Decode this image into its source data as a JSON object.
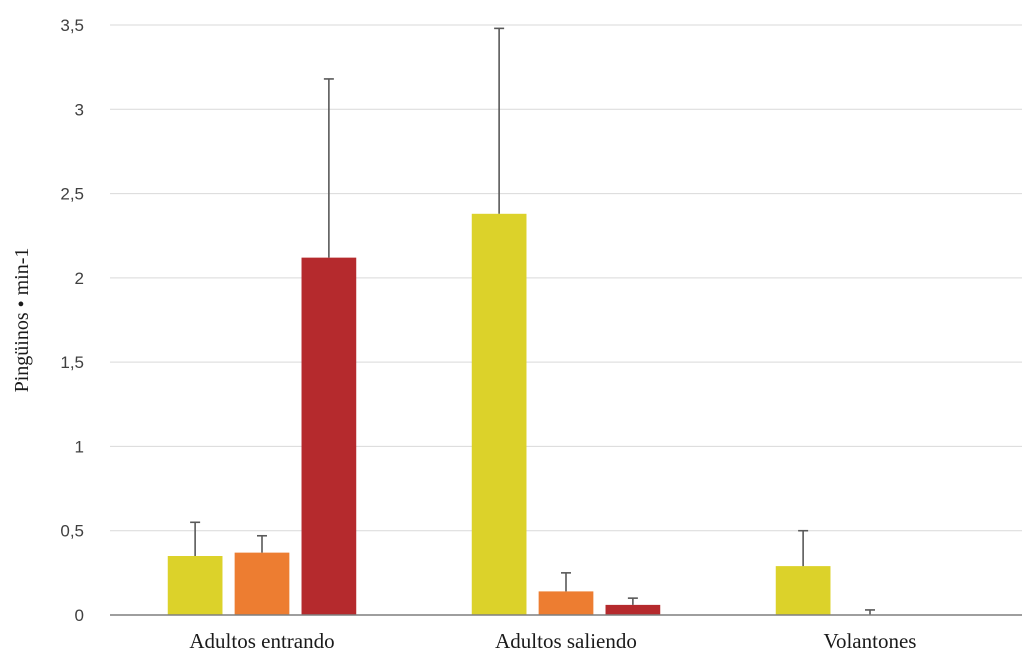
{
  "chart_data": {
    "type": "bar",
    "title": "",
    "xlabel": "",
    "ylabel": "Pingüinos • min-1",
    "ylim": [
      0,
      3.5
    ],
    "y_ticks": [
      "0",
      "0,5",
      "1",
      "1,5",
      "2",
      "2,5",
      "3",
      "3,5"
    ],
    "y_tick_values": [
      0,
      0.5,
      1,
      1.5,
      2,
      2.5,
      3,
      3.5
    ],
    "grid": true,
    "legend": "none",
    "categories": [
      "Adultos entrando",
      "Adultos saliendo",
      "Volantones"
    ],
    "series": [
      {
        "color": "#dcd22a",
        "values": [
          0.35,
          2.38,
          0.29
        ],
        "error_upper": [
          0.2,
          1.1,
          0.21
        ]
      },
      {
        "color": "#ed7d31",
        "values": [
          0.37,
          0.14,
          0.0
        ],
        "error_upper": [
          0.1,
          0.11,
          0.03
        ]
      },
      {
        "color": "#b52a2d",
        "values": [
          2.12,
          0.06,
          0.0
        ],
        "error_upper": [
          1.06,
          0.04,
          0.0
        ]
      }
    ],
    "colors": {
      "axis": "#7f7f7f",
      "grid": "#d9d9d9",
      "error_bar": "#595959"
    }
  }
}
